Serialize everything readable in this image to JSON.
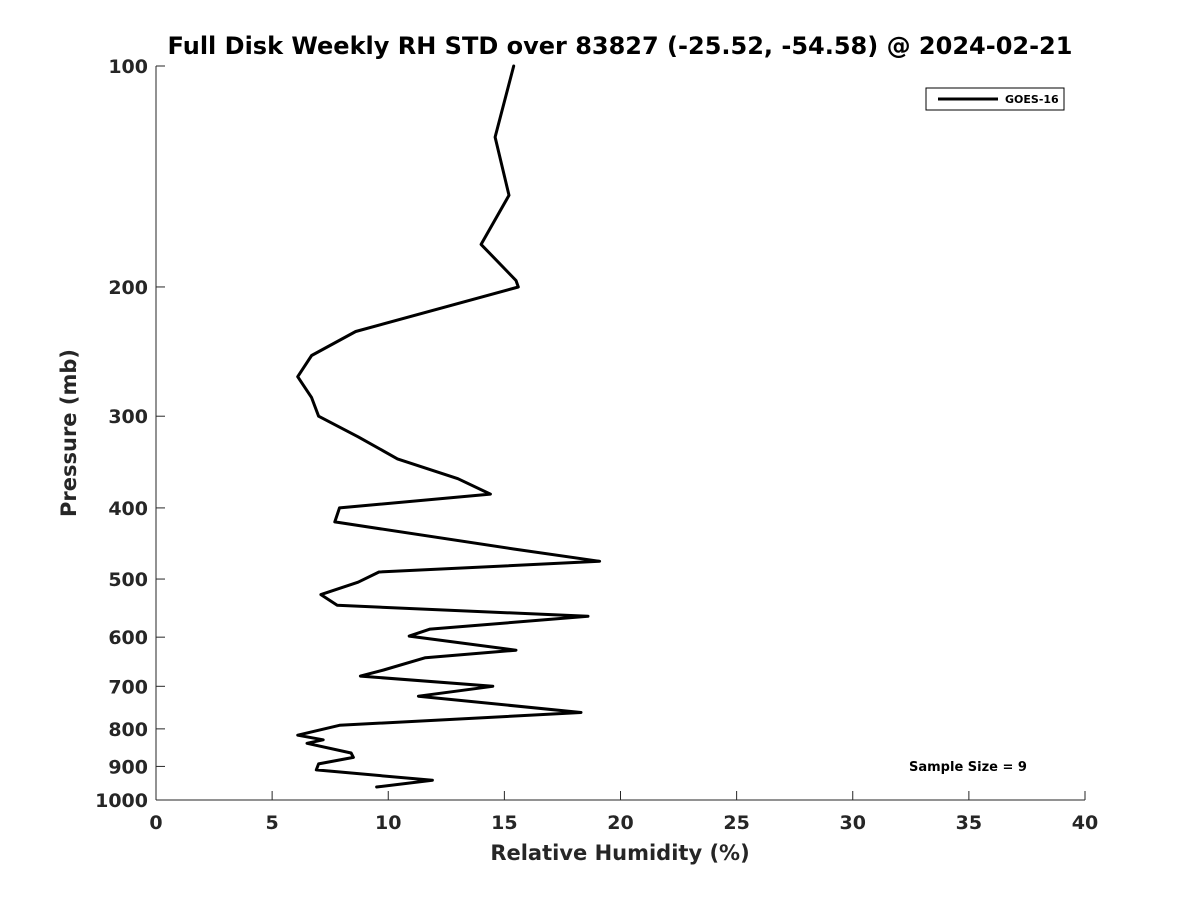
{
  "chart_data": {
    "type": "line",
    "title": "Full Disk Weekly RH STD over 83827 (-25.52, -54.58) @ 2024-02-21",
    "xlabel": "Relative Humidity (%)",
    "ylabel": "Pressure (mb)",
    "xlim": [
      0,
      40
    ],
    "ylim": [
      100,
      1000
    ],
    "y_scale": "log",
    "y_reversed": true,
    "x_ticks": [
      0,
      5,
      10,
      15,
      20,
      25,
      30,
      35,
      40
    ],
    "y_ticks": [
      100,
      200,
      300,
      400,
      500,
      600,
      700,
      800,
      900,
      1000
    ],
    "grid": false,
    "legend_position": "top-right",
    "annotation": "Sample Size = 9",
    "series": [
      {
        "name": "GOES-16",
        "color": "#000000",
        "points": [
          [
            15.4,
            100
          ],
          [
            14.6,
            125
          ],
          [
            15.2,
            150
          ],
          [
            14.0,
            175
          ],
          [
            15.5,
            196
          ],
          [
            15.6,
            200
          ],
          [
            8.6,
            230
          ],
          [
            6.7,
            248
          ],
          [
            6.1,
            265
          ],
          [
            6.7,
            283
          ],
          [
            7.0,
            300
          ],
          [
            8.7,
            320
          ],
          [
            10.4,
            343
          ],
          [
            13.0,
            365
          ],
          [
            14.4,
            383
          ],
          [
            7.9,
            400
          ],
          [
            7.7,
            418
          ],
          [
            15.4,
            455
          ],
          [
            19.1,
            473
          ],
          [
            9.6,
            489
          ],
          [
            8.7,
            505
          ],
          [
            7.1,
            525
          ],
          [
            7.8,
            543
          ],
          [
            18.6,
            562
          ],
          [
            11.8,
            585
          ],
          [
            10.9,
            598
          ],
          [
            15.5,
            625
          ],
          [
            11.6,
            640
          ],
          [
            9.8,
            665
          ],
          [
            8.8,
            678
          ],
          [
            14.5,
            700
          ],
          [
            11.3,
            722
          ],
          [
            18.3,
            760
          ],
          [
            7.9,
            791
          ],
          [
            6.1,
            816
          ],
          [
            7.2,
            828
          ],
          [
            6.5,
            837
          ],
          [
            8.4,
            863
          ],
          [
            8.5,
            875
          ],
          [
            7.0,
            893
          ],
          [
            6.9,
            910
          ],
          [
            11.9,
            940
          ],
          [
            9.5,
            960
          ]
        ]
      }
    ]
  }
}
